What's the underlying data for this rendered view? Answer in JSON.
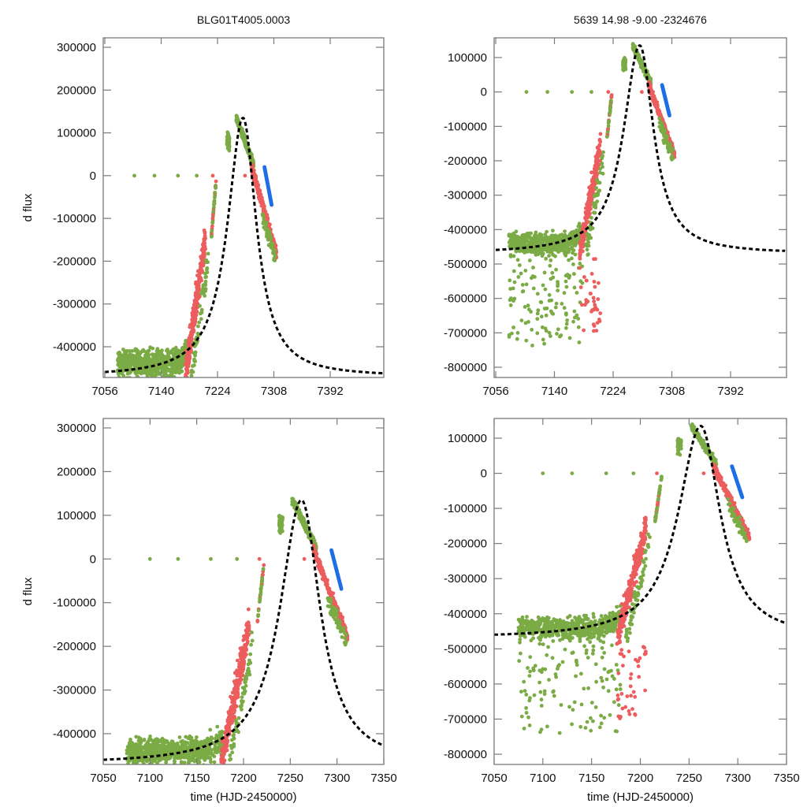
{
  "colors": {
    "green": "#7aab45",
    "red": "#ec5d5d",
    "blue": "#1f6ee8",
    "model": "#000000",
    "frame": "#7a7a7a"
  },
  "chart_data": [
    {
      "id": "top-left",
      "type": "scatter",
      "title": "BLG01T4005.0003",
      "xlabel": "",
      "ylabel": "d flux",
      "xlim": [
        7056,
        7470
      ],
      "ylim": [
        -470000,
        320000
      ],
      "xticks": [
        7056,
        7140,
        7224,
        7308,
        7392
      ],
      "xtick_labels": [
        "7056",
        "7140",
        "7224",
        "7308",
        "7392"
      ],
      "yticks": [
        300000,
        200000,
        100000,
        0,
        -100000,
        -200000,
        -300000,
        -400000
      ],
      "ytick_labels": [
        "300000",
        "200000",
        "100000",
        "0",
        "-100000",
        "-200000",
        "-300000",
        "-400000"
      ],
      "model": {
        "t0": 7262,
        "peak": 135000,
        "base": -470000,
        "rise_width": 30,
        "fall_width": 26,
        "style": "dashed"
      },
      "series": [
        {
          "name": "green",
          "description": "baseline cloud t=7075-7175 flux -470000..-360000; rise t=7195-7222; peak cluster t=7238-7268 flux 30000..150000; decline t=7268-7312"
        },
        {
          "name": "red",
          "description": "t=7176-7222 flux -470000..0; t=7280-7312 flux 20000..-230000"
        },
        {
          "name": "blue",
          "description": "t=7295-7305 flux 20000..-70000"
        }
      ],
      "zero_markers": {
        "green": [
          7100,
          7130,
          7165,
          7193
        ],
        "red": [
          7217,
          7265
        ]
      }
    },
    {
      "id": "top-right",
      "type": "scatter",
      "title": "5639  14.98  -9.00  -2324676",
      "xlabel": "",
      "ylabel": "",
      "xlim": [
        7056,
        7470
      ],
      "ylim": [
        -830000,
        160000
      ],
      "xticks": [
        7056,
        7140,
        7224,
        7308,
        7392
      ],
      "xtick_labels": [
        "7056",
        "7140",
        "7224",
        "7308",
        "7392"
      ],
      "yticks": [
        100000,
        0,
        -100000,
        -200000,
        -300000,
        -400000,
        -500000,
        -600000,
        -700000,
        -800000
      ],
      "ytick_labels": [
        "100000",
        "0",
        "-100000",
        "-200000",
        "-300000",
        "-400000",
        "-500000",
        "-600000",
        "-700000",
        "-800000"
      ],
      "model": {
        "t0": 7262,
        "peak": 135000,
        "base": -470000,
        "rise_width": 30,
        "fall_width": 26,
        "style": "dashed"
      },
      "series": [
        {
          "name": "green",
          "description": "baseline cloud t=7090-7180 flux -550000..-360000 with dips to -830000"
        },
        {
          "name": "red",
          "description": "rising branch t=7176-7222; decline t=7280-7312"
        },
        {
          "name": "blue",
          "description": "t=7295-7305 flux 20000..-70000"
        }
      ],
      "zero_markers": {
        "green": [
          7100,
          7130,
          7165,
          7193
        ],
        "red": [
          7217,
          7265
        ]
      }
    },
    {
      "id": "bottom-left",
      "type": "scatter",
      "title": "",
      "xlabel": "time (HJD-2450000)",
      "ylabel": "d flux",
      "xlim": [
        7050,
        7350
      ],
      "ylim": [
        -470000,
        320000
      ],
      "xticks": [
        7050,
        7100,
        7150,
        7200,
        7250,
        7300,
        7350
      ],
      "xtick_labels": [
        "7050",
        "7100",
        "7150",
        "7200",
        "7250",
        "7300",
        "7350"
      ],
      "yticks": [
        300000,
        200000,
        100000,
        0,
        -100000,
        -200000,
        -300000,
        -400000
      ],
      "ytick_labels": [
        "300000",
        "200000",
        "100000",
        "0",
        "-100000",
        "-200000",
        "-300000",
        "-400000"
      ],
      "model": {
        "t0": 7262,
        "peak": 135000,
        "base": -470000,
        "rise_width": 30,
        "fall_width": 26,
        "style": "dashed"
      },
      "series": [
        {
          "name": "green",
          "description": "baseline cloud t=7080-7180; peak t=7238-7268"
        },
        {
          "name": "red",
          "description": "rising branch t=7176-7222; decline t=7280-7312"
        },
        {
          "name": "blue",
          "description": "t=7295-7305 flux 20000..-70000"
        }
      ],
      "zero_markers": {
        "green": [
          7100,
          7130,
          7165,
          7193
        ],
        "red": [
          7217,
          7265
        ]
      }
    },
    {
      "id": "bottom-right",
      "type": "scatter",
      "title": "",
      "xlabel": "time (HJD-2450000)",
      "ylabel": "",
      "xlim": [
        7050,
        7350
      ],
      "ylim": [
        -830000,
        160000
      ],
      "xticks": [
        7050,
        7100,
        7150,
        7200,
        7250,
        7300,
        7350
      ],
      "xtick_labels": [
        "7050",
        "7100",
        "7150",
        "7200",
        "7250",
        "7300",
        "7350"
      ],
      "yticks": [
        100000,
        0,
        -100000,
        -200000,
        -300000,
        -400000,
        -500000,
        -600000,
        -700000,
        -800000
      ],
      "ytick_labels": [
        "100000",
        "0",
        "-100000",
        "-200000",
        "-300000",
        "-400000",
        "-500000",
        "-600000",
        "-700000",
        "-800000"
      ],
      "model": {
        "t0": 7262,
        "peak": 135000,
        "base": -470000,
        "rise_width": 30,
        "fall_width": 26,
        "style": "dashed"
      },
      "series": [
        {
          "name": "green",
          "description": "baseline cloud t=7090-7180 flux -550000..-360000 with dips to -830000"
        },
        {
          "name": "red",
          "description": "rising branch t=7176-7222; decline t=7280-7312"
        },
        {
          "name": "blue",
          "description": "t=7295-7305 flux 20000..-70000"
        }
      ],
      "zero_markers": {
        "green": [
          7100,
          7130,
          7165,
          7193
        ],
        "red": [
          7217,
          7265
        ]
      }
    }
  ]
}
